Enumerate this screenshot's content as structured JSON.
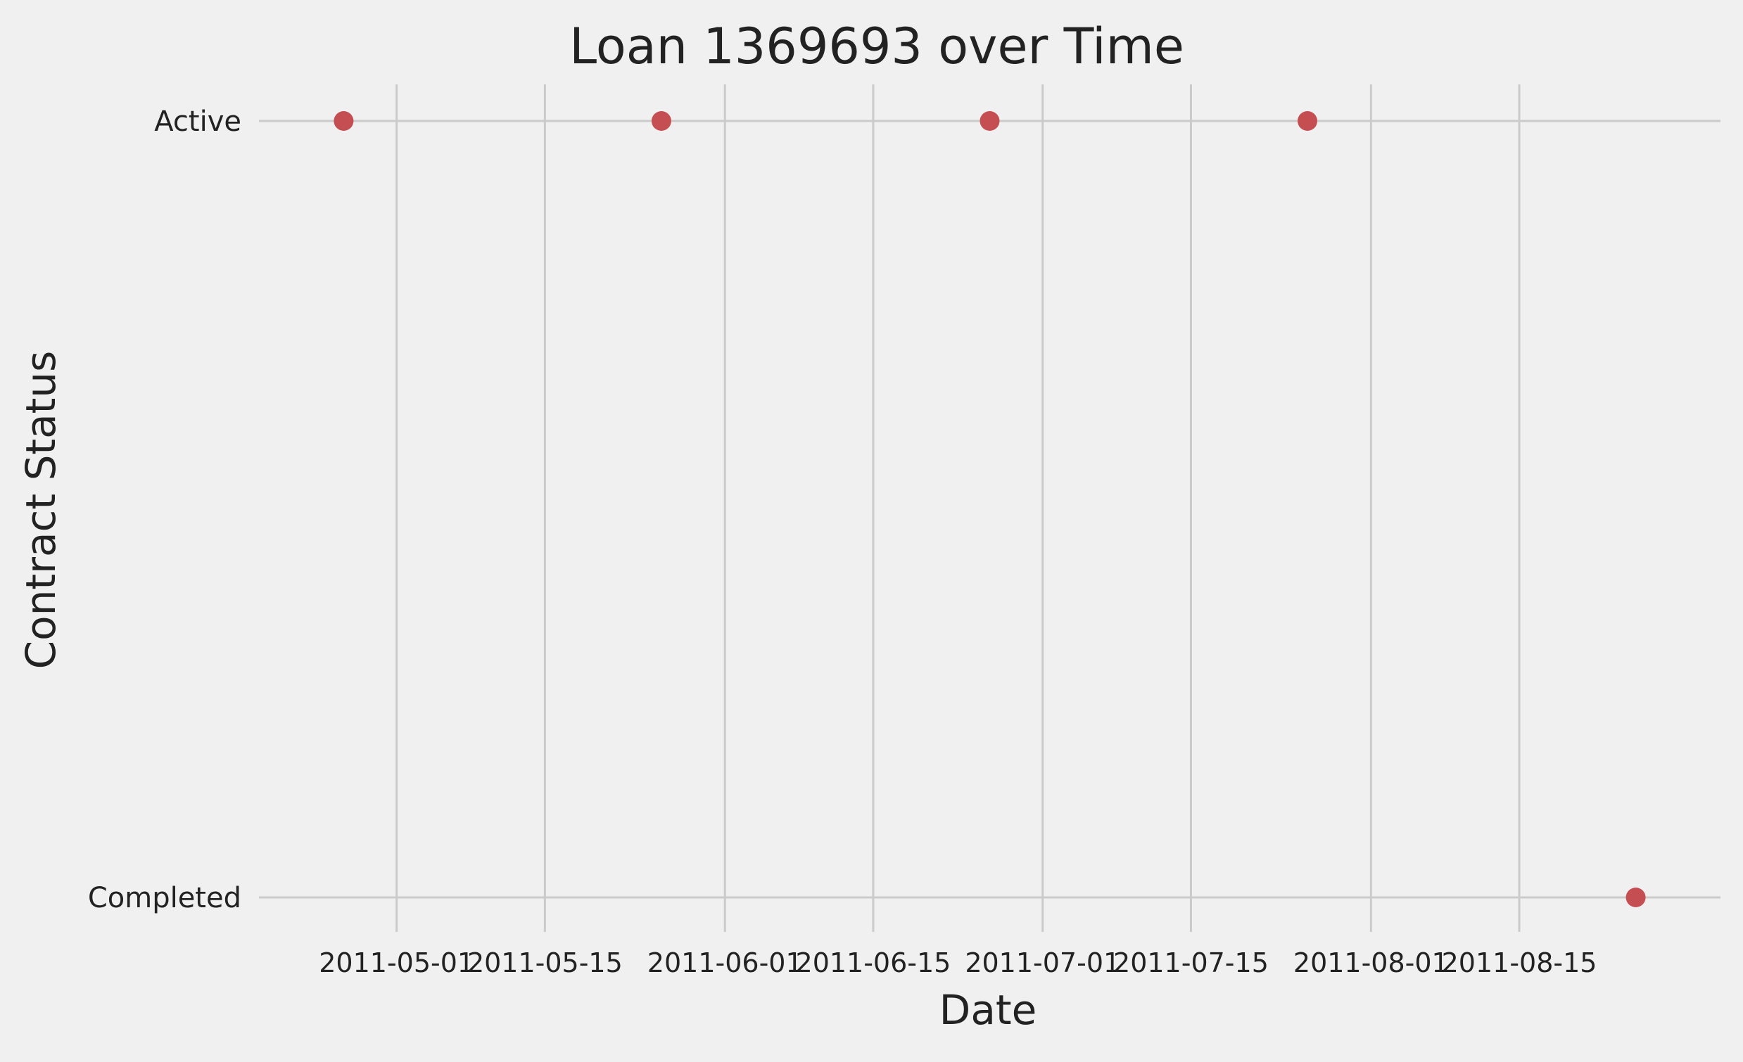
{
  "chart_data": {
    "type": "scatter",
    "title": "Loan 1369693 over Time",
    "xlabel": "Date",
    "ylabel": "Contract Status",
    "y_categories": [
      "Completed",
      "Active"
    ],
    "x_ticks": [
      "2011-05-01",
      "2011-05-15",
      "2011-06-01",
      "2011-06-15",
      "2011-07-01",
      "2011-07-15",
      "2011-08-01",
      "2011-08-15"
    ],
    "xlim": [
      "2011-04-18",
      "2011-09-03"
    ],
    "grid": true,
    "legend": "none",
    "series": [
      {
        "color": "#c44e52",
        "points": [
          {
            "x": "2011-04-26",
            "y": "Active"
          },
          {
            "x": "2011-05-26",
            "y": "Active"
          },
          {
            "x": "2011-06-26",
            "y": "Active"
          },
          {
            "x": "2011-07-26",
            "y": "Active"
          },
          {
            "x": "2011-08-26",
            "y": "Completed"
          }
        ]
      }
    ]
  }
}
